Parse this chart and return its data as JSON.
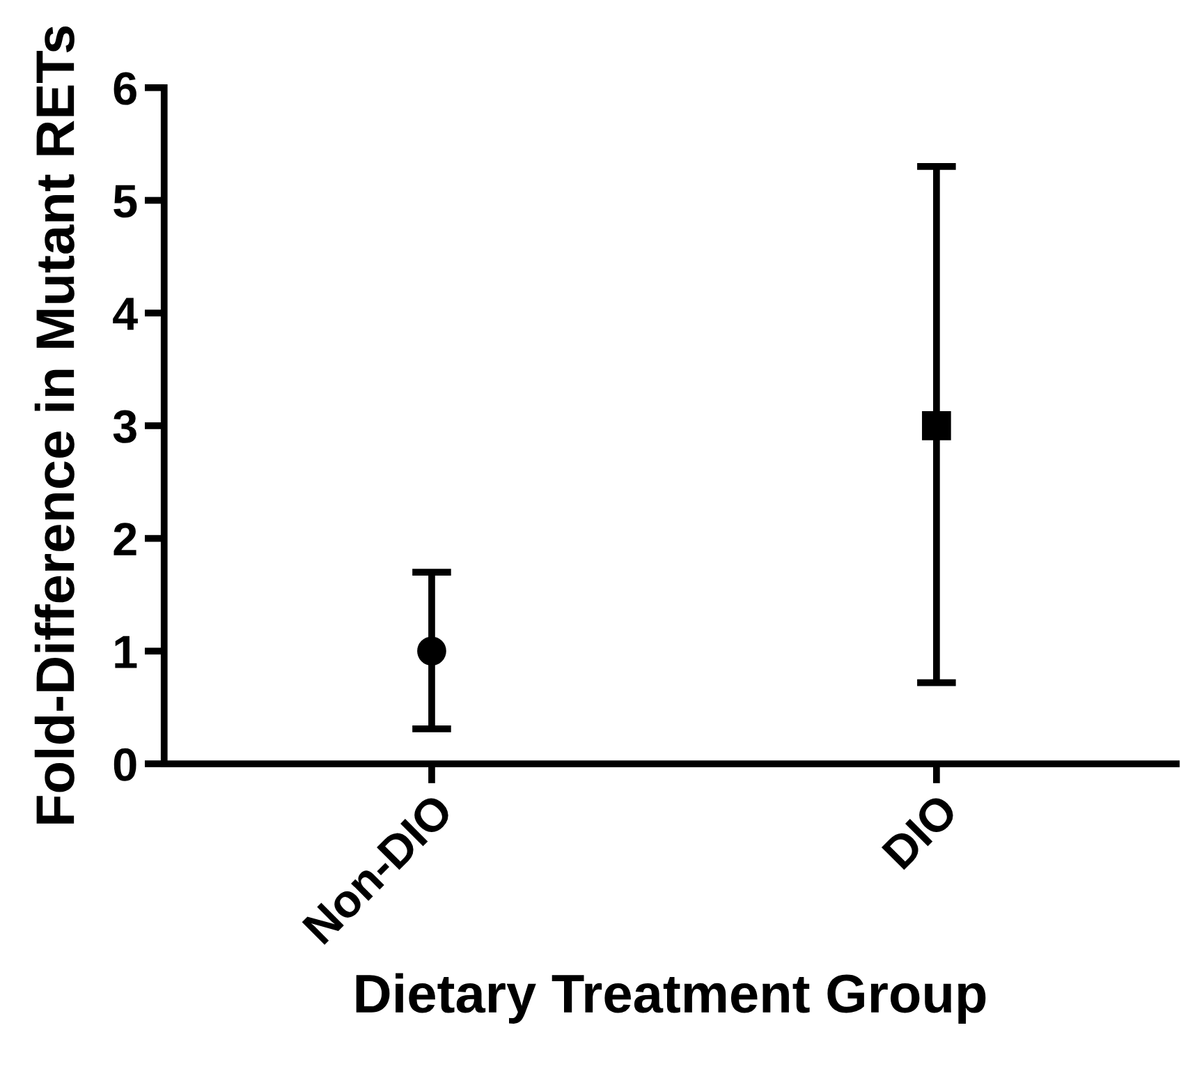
{
  "chart_data": {
    "type": "scatter",
    "xlabel": "Dietary Treatment Group",
    "ylabel": "Fold-Difference in Mutant RETs",
    "categories": [
      "Non-DIO",
      "DIO"
    ],
    "series": [
      {
        "color": "#000000",
        "marker": "circle",
        "values": [
          1.0,
          null
        ],
        "errors": [
          [
            0.31,
            1.7
          ],
          null
        ]
      },
      {
        "color": "#000000",
        "marker": "square",
        "values": [
          null,
          3.0
        ],
        "errors": [
          null,
          [
            0.72,
            5.3
          ]
        ]
      }
    ],
    "ylim": [
      0,
      6
    ],
    "yticks": [
      0,
      1,
      2,
      3,
      4,
      5,
      6
    ],
    "grid": false
  }
}
